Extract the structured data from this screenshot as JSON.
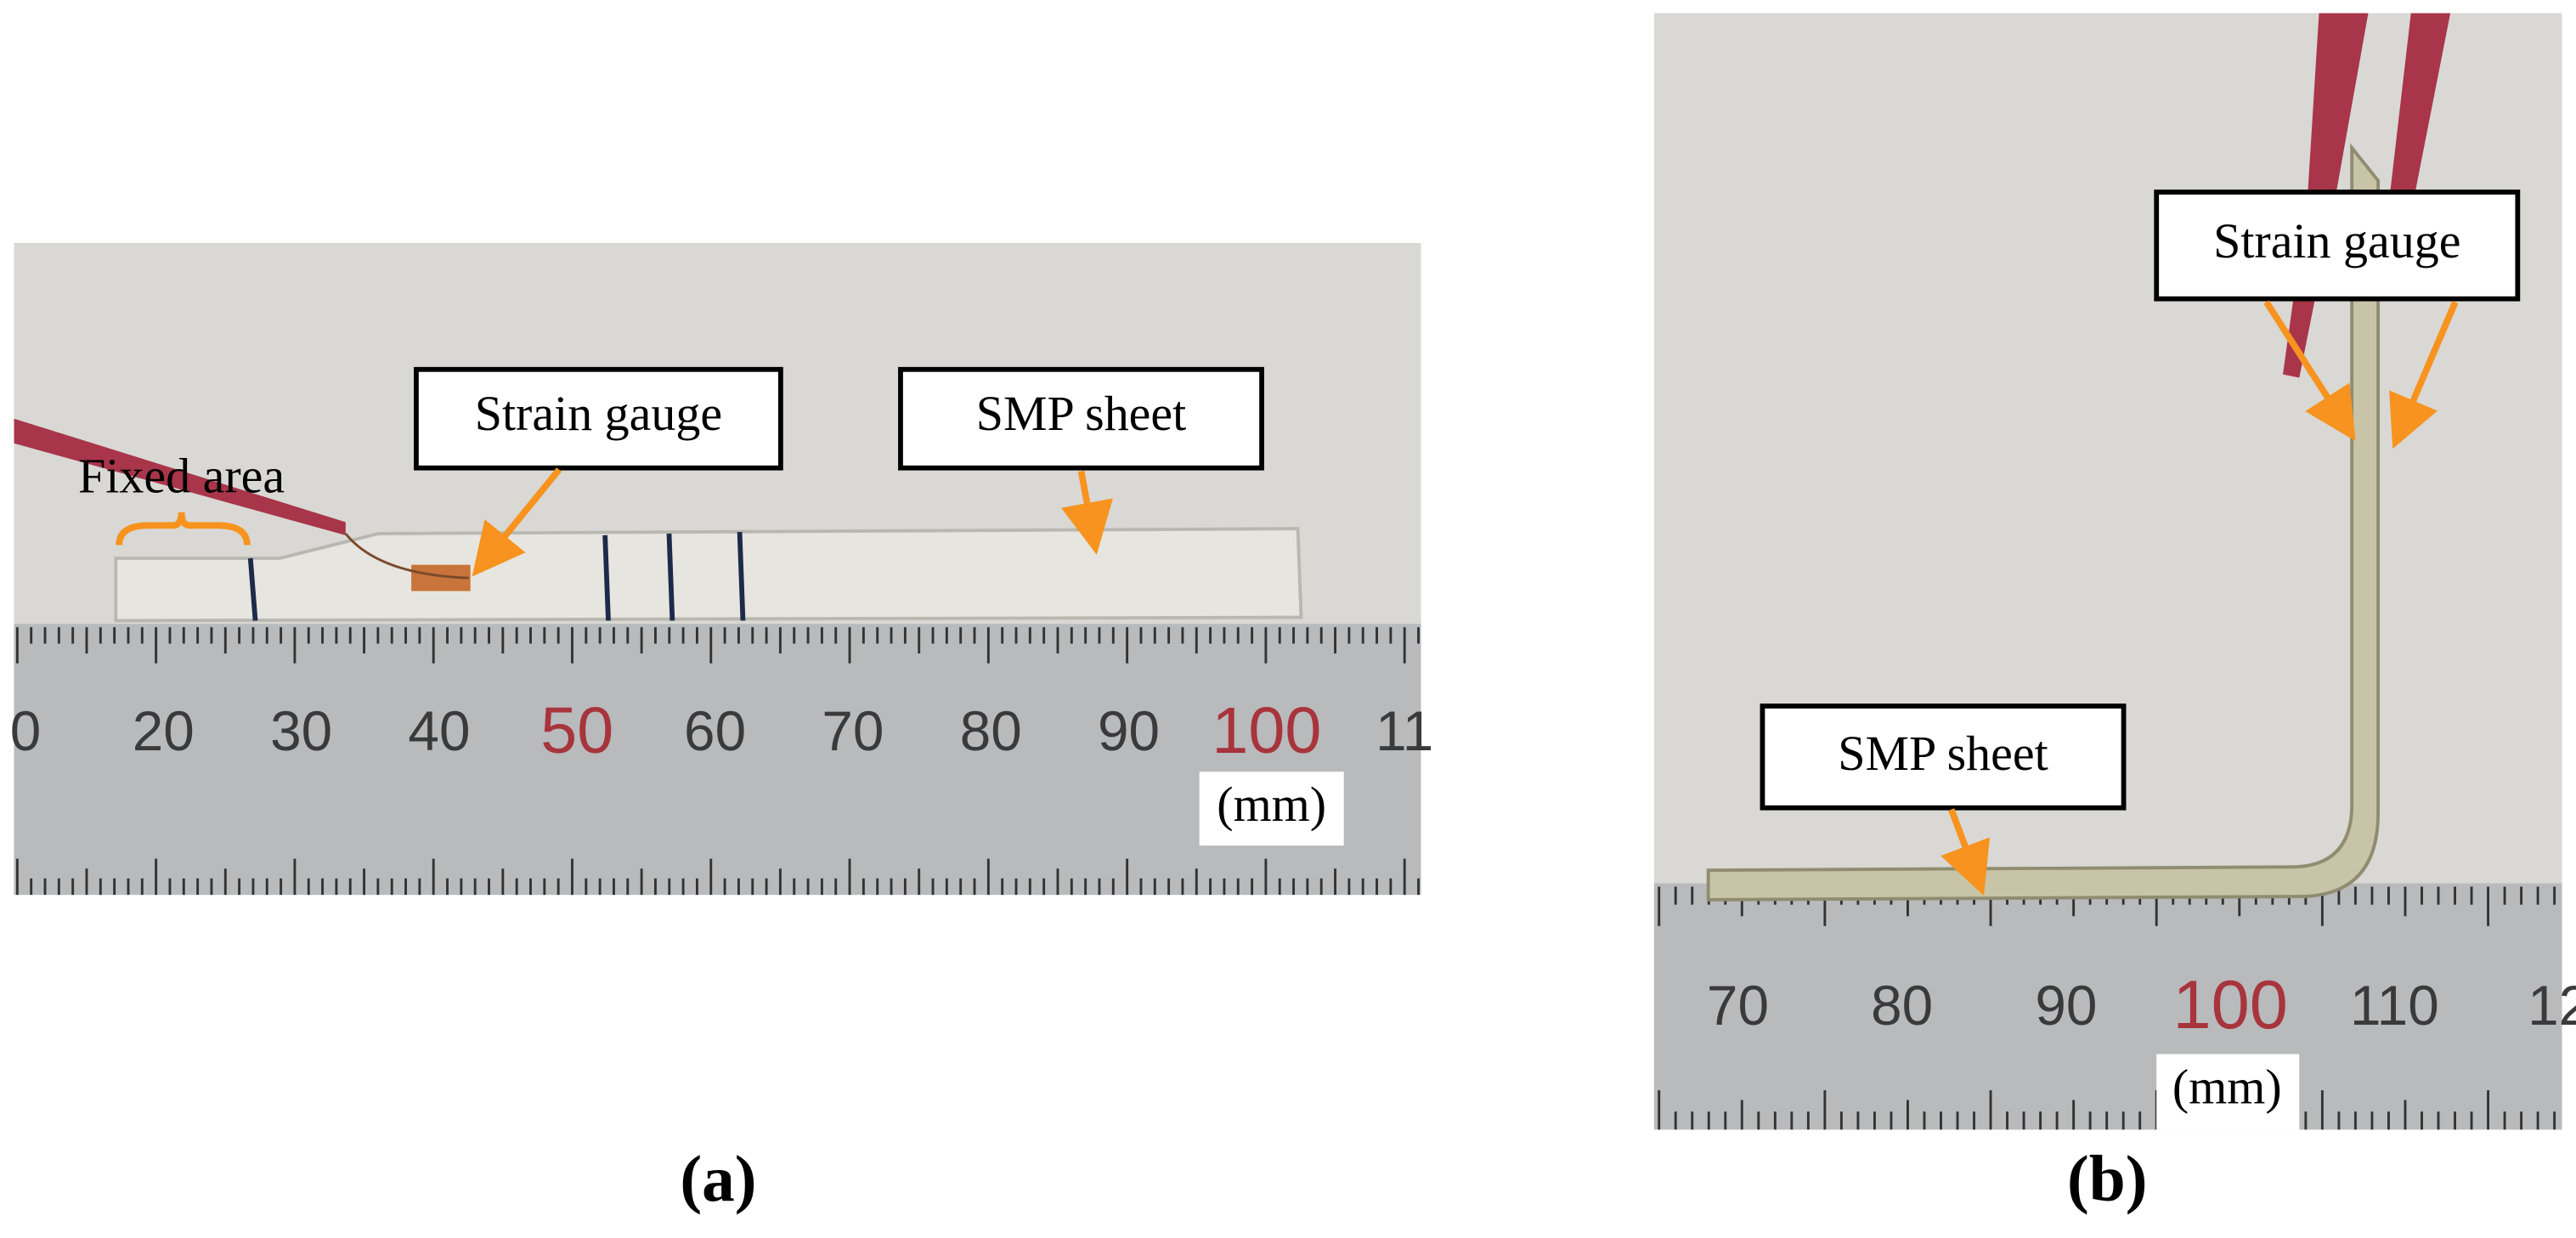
{
  "panel_a": {
    "label": "(a)",
    "annotations": {
      "fixed_area": "Fixed area",
      "strain_gauge": "Strain gauge",
      "smp_sheet": "SMP sheet",
      "unit": "(mm)"
    },
    "ruler_labels": [
      "0",
      "20",
      "30",
      "40",
      "50",
      "60",
      "70",
      "80",
      "90",
      "100",
      "11"
    ]
  },
  "panel_b": {
    "label": "(b)",
    "annotations": {
      "strain_gauge": "Strain gauge",
      "smp_sheet": "SMP sheet",
      "unit": "(mm)"
    },
    "ruler_labels": [
      "70",
      "80",
      "90",
      "100",
      "110",
      "12"
    ]
  }
}
